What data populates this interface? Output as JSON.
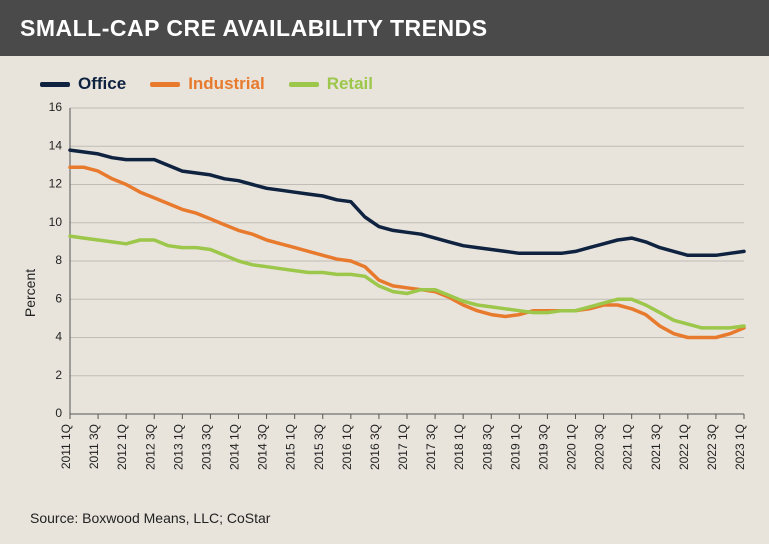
{
  "title": "SMALL-CAP CRE AVAILABILITY TRENDS",
  "chart": {
    "type": "line",
    "background_color": "#e8e4dc",
    "plot_background": "#e8e4dc",
    "title_bar_color": "#4a4a4a",
    "title_color": "#ffffff",
    "title_fontsize": 23,
    "ylabel": "Percent",
    "label_fontsize": 14,
    "ylim": [
      0,
      16
    ],
    "yticks": [
      0,
      2,
      4,
      6,
      8,
      10,
      12,
      14,
      16
    ],
    "grid_color": "#bfbdb6",
    "axis_color": "#555555",
    "line_width": 3.5,
    "x_categories": [
      "2011 1Q",
      "2011 2Q",
      "2011 3Q",
      "2011 4Q",
      "2012 1Q",
      "2012 2Q",
      "2012 3Q",
      "2012 4Q",
      "2013 1Q",
      "2013 2Q",
      "2013 3Q",
      "2013 4Q",
      "2014 1Q",
      "2014 2Q",
      "2014 3Q",
      "2014 4Q",
      "2015 1Q",
      "2015 2Q",
      "2015 3Q",
      "2015 4Q",
      "2016 1Q",
      "2016 2Q",
      "2016 3Q",
      "2016 4Q",
      "2017 1Q",
      "2017 2Q",
      "2017 3Q",
      "2017 4Q",
      "2018 1Q",
      "2018 2Q",
      "2018 3Q",
      "2018 4Q",
      "2019 1Q",
      "2019 2Q",
      "2019 3Q",
      "2019 4Q",
      "2020 1Q",
      "2020 2Q",
      "2020 3Q",
      "2020 4Q",
      "2021 1Q",
      "2021 2Q",
      "2021 3Q",
      "2021 4Q",
      "2022 1Q",
      "2022 2Q",
      "2022 3Q",
      "2022 4Q",
      "2023 1Q"
    ],
    "x_tick_labels": [
      "2011 1Q",
      "2011 3Q",
      "2012 1Q",
      "2012 3Q",
      "2013 1Q",
      "2013 3Q",
      "2014 1Q",
      "2014 3Q",
      "2015 1Q",
      "2015 3Q",
      "2016 1Q",
      "2016 3Q",
      "2017 1Q",
      "2017 3Q",
      "2018 1Q",
      "2018 3Q",
      "2019 1Q",
      "2019 3Q",
      "2020 1Q",
      "2020 3Q",
      "2021 1Q",
      "2021 3Q",
      "2022 1Q",
      "2022 3Q",
      "2023 1Q"
    ],
    "legend": {
      "position": "top-left",
      "fontsize": 17,
      "items": [
        {
          "label": "Office",
          "color": "#0f2340"
        },
        {
          "label": "Industrial",
          "color": "#e87a2e"
        },
        {
          "label": "Retail",
          "color": "#9cc74a"
        }
      ]
    },
    "series": [
      {
        "name": "Office",
        "color": "#0f2340",
        "values": [
          13.8,
          13.7,
          13.6,
          13.4,
          13.3,
          13.3,
          13.3,
          13.0,
          12.7,
          12.6,
          12.5,
          12.3,
          12.2,
          12.0,
          11.8,
          11.7,
          11.6,
          11.5,
          11.4,
          11.2,
          11.1,
          10.3,
          9.8,
          9.6,
          9.5,
          9.4,
          9.2,
          9.0,
          8.8,
          8.7,
          8.6,
          8.5,
          8.4,
          8.4,
          8.4,
          8.4,
          8.5,
          8.7,
          8.9,
          9.1,
          9.2,
          9.0,
          8.7,
          8.5,
          8.3,
          8.3,
          8.3,
          8.4,
          8.5
        ]
      },
      {
        "name": "Industrial",
        "color": "#e87a2e",
        "values": [
          12.9,
          12.9,
          12.7,
          12.3,
          12.0,
          11.6,
          11.3,
          11.0,
          10.7,
          10.5,
          10.2,
          9.9,
          9.6,
          9.4,
          9.1,
          8.9,
          8.7,
          8.5,
          8.3,
          8.1,
          8.0,
          7.7,
          7.0,
          6.7,
          6.6,
          6.5,
          6.4,
          6.1,
          5.7,
          5.4,
          5.2,
          5.1,
          5.2,
          5.4,
          5.4,
          5.4,
          5.4,
          5.5,
          5.7,
          5.7,
          5.5,
          5.2,
          4.6,
          4.2,
          4.0,
          4.0,
          4.0,
          4.2,
          4.5
        ]
      },
      {
        "name": "Retail",
        "color": "#9cc74a",
        "values": [
          9.3,
          9.2,
          9.1,
          9.0,
          8.9,
          9.1,
          9.1,
          8.8,
          8.7,
          8.7,
          8.6,
          8.3,
          8.0,
          7.8,
          7.7,
          7.6,
          7.5,
          7.4,
          7.4,
          7.3,
          7.3,
          7.2,
          6.7,
          6.4,
          6.3,
          6.5,
          6.5,
          6.2,
          5.9,
          5.7,
          5.6,
          5.5,
          5.4,
          5.3,
          5.3,
          5.4,
          5.4,
          5.6,
          5.8,
          6.0,
          6.0,
          5.7,
          5.3,
          4.9,
          4.7,
          4.5,
          4.5,
          4.5,
          4.6
        ]
      }
    ]
  },
  "source": "Source: Boxwood Means, LLC; CoStar"
}
